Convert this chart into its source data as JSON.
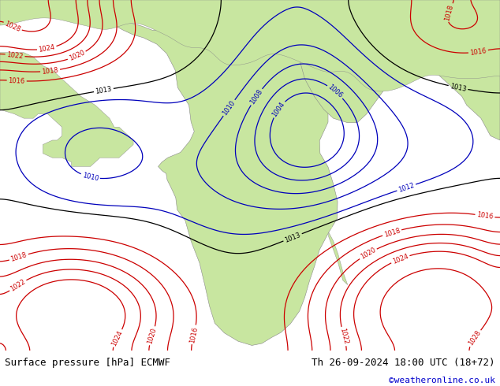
{
  "title_left": "Surface pressure [hPa] ECMWF",
  "title_right": "Th 26-09-2024 18:00 UTC (18+72)",
  "copyright": "©weatheronline.co.uk",
  "sea_color": "#e8e8e8",
  "land_color": "#c8e6a0",
  "land_edge_color": "#888888",
  "figsize": [
    6.34,
    4.9
  ],
  "dpi": 100,
  "bottom_bar_height": 0.092,
  "bottom_bar_color": "#ffffff",
  "text_color_black": "#000000",
  "text_color_blue": "#0000cc",
  "text_color_red": "#cc0000",
  "font_size_label": 9,
  "font_size_copyright": 8,
  "map_extent": [
    -25,
    80,
    -40,
    40
  ],
  "red_contour_color": "#cc0000",
  "blue_contour_color": "#0000bb",
  "black_contour_color": "#000000",
  "contour_linewidth": 0.9
}
